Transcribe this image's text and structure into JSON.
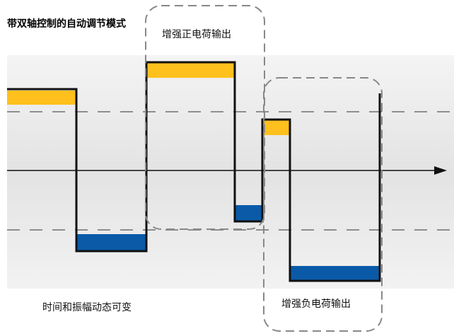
{
  "title": "带双轴控制的自动调节模式",
  "labels": {
    "positive_output": "增强正电荷输出",
    "negative_output": "增强负电荷输出",
    "time_amplitude": "时间和振幅动态可变"
  },
  "colors": {
    "band_bg": "#e6e6e6",
    "positive_fill": "#fdc01d",
    "negative_fill": "#0a5aa8",
    "waveform": "#111111",
    "dashed": "#666666",
    "highlight_frame": "#888888"
  }
}
